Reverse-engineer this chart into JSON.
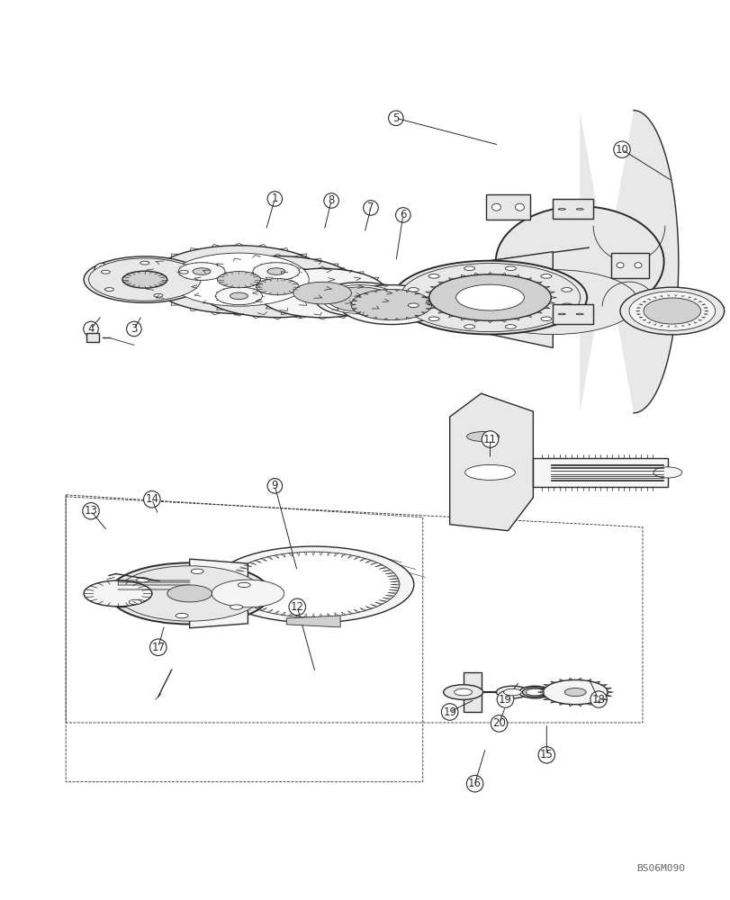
{
  "bg_color": "#ffffff",
  "line_color": "#2a2a2a",
  "figsize": [
    8.12,
    10.0
  ],
  "dpi": 100,
  "watermark": "BS06M090",
  "lw_main": 1.0,
  "lw_thin": 0.6,
  "lw_thick": 1.4,
  "gear_color": "#f5f5f5",
  "housing_color": "#e8e8e8",
  "dark_color": "#d0d0d0"
}
